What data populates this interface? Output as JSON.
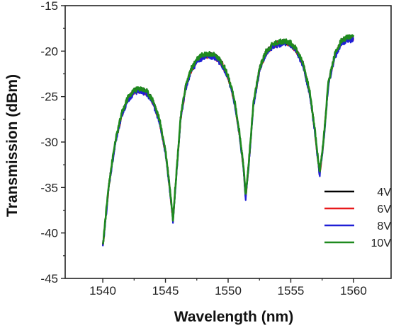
{
  "chart_data": {
    "type": "line",
    "title": "",
    "xlabel": "Wavelength (nm)",
    "ylabel": "Transmission (dBm)",
    "xlim": [
      1537,
      1563
    ],
    "ylim": [
      -45,
      -15
    ],
    "xticks": [
      1540,
      1545,
      1550,
      1555,
      1560
    ],
    "yticks": [
      -45,
      -40,
      -35,
      -30,
      -25,
      -20,
      -15
    ],
    "grid": false,
    "legend_position": "bottom-right",
    "colors": {
      "4V": "#000000",
      "6V": "#e8191b",
      "8V": "#1f1fd6",
      "10V": "#1f8a1f"
    },
    "series": [
      {
        "name": "4V",
        "color": "#000000",
        "offset": 0.0
      },
      {
        "name": "6V",
        "color": "#e8191b",
        "offset": -0.1
      },
      {
        "name": "8V",
        "color": "#1f1fd6",
        "offset": -0.2
      },
      {
        "name": "10V",
        "color": "#1f8a1f",
        "offset": 0.1
      }
    ],
    "x": [
      1540.0,
      1540.5,
      1541.0,
      1541.5,
      1542.0,
      1542.5,
      1543.0,
      1543.5,
      1544.0,
      1544.5,
      1545.0,
      1545.3,
      1545.6,
      1545.9,
      1546.2,
      1546.6,
      1547.0,
      1547.5,
      1548.0,
      1548.5,
      1549.0,
      1549.5,
      1550.0,
      1550.5,
      1550.9,
      1551.2,
      1551.4,
      1551.7,
      1552.0,
      1552.5,
      1553.0,
      1553.5,
      1554.0,
      1554.5,
      1555.0,
      1555.5,
      1556.0,
      1556.5,
      1556.9,
      1557.3,
      1557.6,
      1558.0,
      1558.5,
      1559.0,
      1559.5,
      1560.0
    ],
    "y": [
      -41.5,
      -34.5,
      -30.0,
      -27.0,
      -25.2,
      -24.4,
      -24.2,
      -24.5,
      -25.5,
      -27.5,
      -31.0,
      -34.5,
      -38.5,
      -33.0,
      -27.5,
      -24.0,
      -22.2,
      -21.0,
      -20.5,
      -20.4,
      -20.6,
      -21.3,
      -22.8,
      -25.5,
      -29.0,
      -32.5,
      -36.0,
      -31.5,
      -26.0,
      -22.0,
      -20.2,
      -19.4,
      -19.1,
      -19.0,
      -19.2,
      -20.0,
      -21.5,
      -24.5,
      -28.5,
      -33.5,
      -30.0,
      -23.5,
      -20.5,
      -19.0,
      -18.6,
      -18.6
    ]
  }
}
